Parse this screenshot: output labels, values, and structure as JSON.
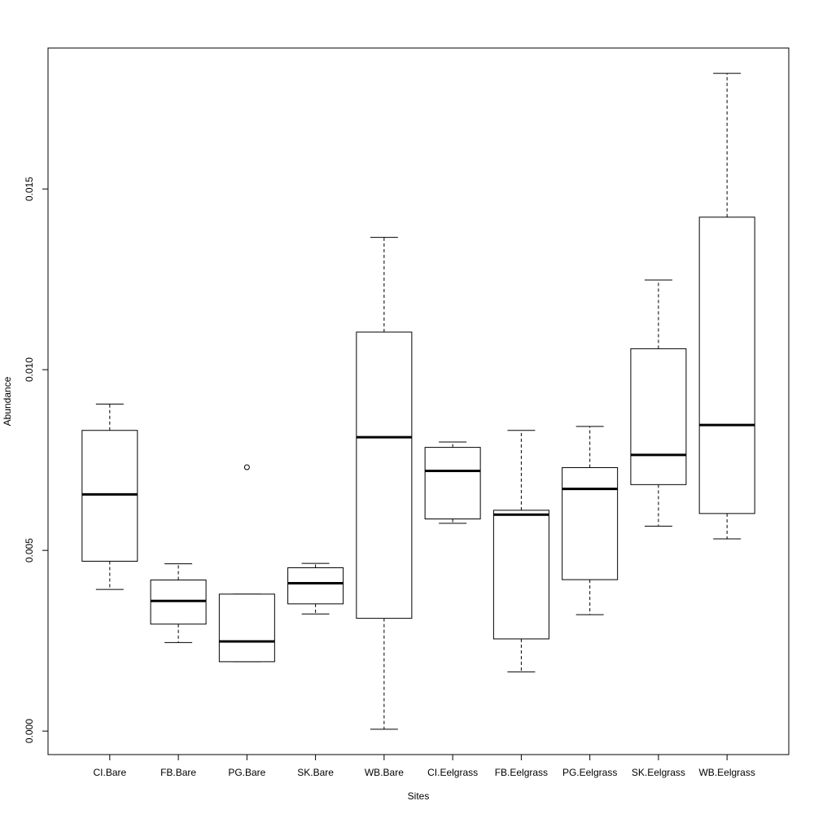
{
  "chart_data": {
    "type": "boxplot",
    "title": "",
    "xlabel": "Sites",
    "ylabel": "Abundance",
    "ylim": [
      -0.00065,
      0.0189
    ],
    "yticks": [
      {
        "value": 0.0,
        "label": "0.000"
      },
      {
        "value": 0.005,
        "label": "0.005"
      },
      {
        "value": 0.01,
        "label": "0.010"
      },
      {
        "value": 0.015,
        "label": "0.015"
      }
    ],
    "grid": false,
    "colors": {
      "stroke": "#000000",
      "box_fill": "#ffffff"
    },
    "boxes": [
      {
        "category": "CI.Bare",
        "whisker_low": 0.00392,
        "q1": 0.0047,
        "median": 0.00655,
        "q3": 0.00832,
        "whisker_high": 0.00905,
        "outliers": []
      },
      {
        "category": "FB.Bare",
        "whisker_low": 0.00245,
        "q1": 0.00296,
        "median": 0.0036,
        "q3": 0.00418,
        "whisker_high": 0.00463,
        "outliers": []
      },
      {
        "category": "PG.Bare",
        "whisker_low": 0.00192,
        "q1": 0.00192,
        "median": 0.00248,
        "q3": 0.00379,
        "whisker_high": 0.00379,
        "outliers": [
          0.0073
        ]
      },
      {
        "category": "SK.Bare",
        "whisker_low": 0.00324,
        "q1": 0.00352,
        "median": 0.00409,
        "q3": 0.00452,
        "whisker_high": 0.00464,
        "outliers": []
      },
      {
        "category": "WB.Bare",
        "whisker_low": 5e-05,
        "q1": 0.00312,
        "median": 0.00813,
        "q3": 0.01104,
        "whisker_high": 0.01366,
        "outliers": []
      },
      {
        "category": "CI.Eelgrass",
        "whisker_low": 0.00575,
        "q1": 0.00587,
        "median": 0.0072,
        "q3": 0.00785,
        "whisker_high": 0.008,
        "outliers": []
      },
      {
        "category": "FB.Eelgrass",
        "whisker_low": 0.00164,
        "q1": 0.00255,
        "median": 0.00599,
        "q3": 0.00611,
        "whisker_high": 0.00832,
        "outliers": []
      },
      {
        "category": "PG.Eelgrass",
        "whisker_low": 0.00322,
        "q1": 0.00419,
        "median": 0.0067,
        "q3": 0.00729,
        "whisker_high": 0.00843,
        "outliers": []
      },
      {
        "category": "SK.Eelgrass",
        "whisker_low": 0.00567,
        "q1": 0.00682,
        "median": 0.00764,
        "q3": 0.01058,
        "whisker_high": 0.01248,
        "outliers": []
      },
      {
        "category": "WB.Eelgrass",
        "whisker_low": 0.00532,
        "q1": 0.00602,
        "median": 0.00847,
        "q3": 0.01422,
        "whisker_high": 0.0182,
        "outliers": []
      }
    ]
  }
}
